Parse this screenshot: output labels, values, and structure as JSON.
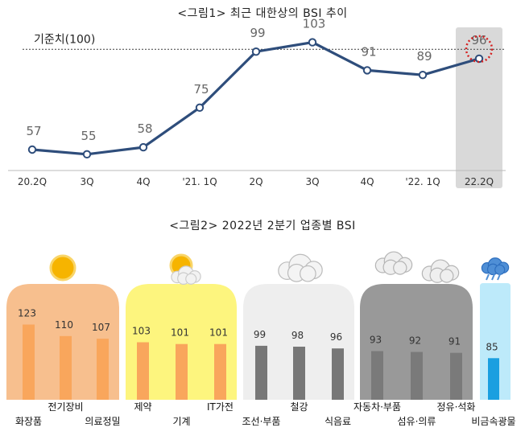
{
  "chart_data": [
    {
      "type": "line",
      "title": "<그림1> 최근 대한상의 BSI 추이",
      "reference_label": "기준치(100)",
      "reference_value": 100,
      "categories": [
        "20.2Q",
        "3Q",
        "4Q",
        "'21. 1Q",
        "2Q",
        "3Q",
        "4Q",
        "'22. 1Q",
        "22.2Q"
      ],
      "values": [
        57,
        55,
        58,
        75,
        99,
        103,
        91,
        89,
        96
      ],
      "highlight_index": 8,
      "colors": {
        "line": "#2e4d7b",
        "highlight_band": "#d9d9d9",
        "highlight_circle": "#d62020",
        "reference": "#555555"
      }
    },
    {
      "type": "bar",
      "title": "<그림2> 2022년 2분기 업종별 BSI",
      "groups": [
        {
          "weather": "sunny-icon",
          "color_bg": "#f7bf8e",
          "color_bar": "#f9a65c",
          "items": [
            {
              "label": "화장품",
              "value": 123,
              "label_row": "low"
            },
            {
              "label": "전기장비",
              "value": 110,
              "label_row": "high"
            },
            {
              "label": "의료정밀",
              "value": 107,
              "label_row": "low"
            }
          ]
        },
        {
          "weather": "partly-sunny-icon",
          "color_bg": "#fdf57e",
          "color_bar": "#f9a65c",
          "items": [
            {
              "label": "제약",
              "value": 103,
              "label_row": "high"
            },
            {
              "label": "기계",
              "value": 101,
              "label_row": "low"
            },
            {
              "label": "IT가전",
              "value": 101,
              "label_row": "high"
            }
          ]
        },
        {
          "weather": "cloudy-icon",
          "color_bg": "#eeeeee",
          "color_bar": "#777777",
          "items": [
            {
              "label": "조선·부품",
              "value": 99,
              "label_row": "low"
            },
            {
              "label": "철강",
              "value": 98,
              "label_row": "high"
            },
            {
              "label": "식음료",
              "value": 96,
              "label_row": "low"
            }
          ]
        },
        {
          "weather": "dark-cloud-icon",
          "color_bg": "#999999",
          "color_bar": "#7a7a7a",
          "items": [
            {
              "label": "자동차·부품",
              "value": 93,
              "label_row": "high"
            },
            {
              "label": "섬유·의류",
              "value": 92,
              "label_row": "low"
            },
            {
              "label": "정유·석화",
              "value": 91,
              "label_row": "high"
            }
          ]
        },
        {
          "weather": "rain-icon",
          "color_bg": "#bdeafa",
          "color_bar": "#1a9fe0",
          "items": [
            {
              "label": "비금속광물",
              "value": 85,
              "label_row": "low"
            }
          ]
        }
      ]
    }
  ]
}
